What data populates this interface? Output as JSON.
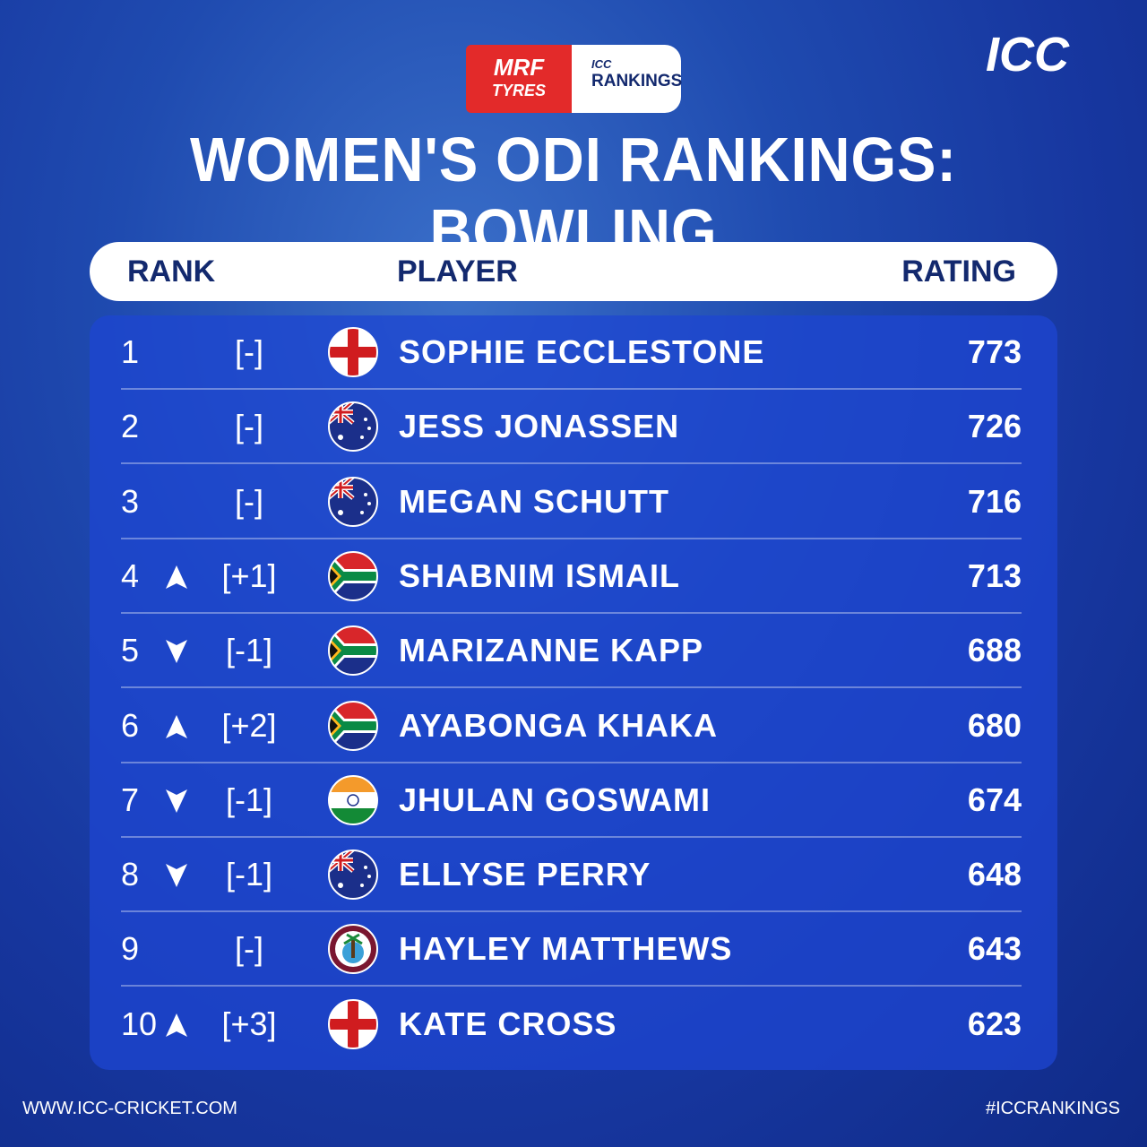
{
  "header": {
    "sponsor_top": "MRF",
    "sponsor_bottom": "TYRES",
    "badge_small": "ICC",
    "badge_main": "RANKINGS",
    "logo": "ICC",
    "title": "WOMEN'S ODI RANKINGS: BOWLING"
  },
  "table": {
    "columns": [
      "RANK",
      "PLAYER",
      "RATING"
    ],
    "rows": [
      [
        "1",
        "[-]",
        "SOPHIE ECCLESTONE",
        "773"
      ],
      [
        "2",
        "[-]",
        "JESS JONASSEN",
        "726"
      ],
      [
        "3",
        "[-]",
        "MEGAN SCHUTT",
        "716"
      ],
      [
        "4",
        "[+1]",
        "SHABNIM ISMAIL",
        "713"
      ],
      [
        "5",
        "[-1]",
        "MARIZANNE KAPP",
        "688"
      ],
      [
        "6",
        "[+2]",
        "AYABONGA KHAKA",
        "680"
      ],
      [
        "7",
        "[-1]",
        "JHULAN GOSWAMI",
        "674"
      ],
      [
        "8",
        "[-1]",
        "ELLYSE PERRY",
        "648"
      ],
      [
        "9",
        "[-]",
        "HAYLEY MATTHEWS",
        "643"
      ],
      [
        "10",
        "[+3]",
        "KATE CROSS",
        "623"
      ]
    ]
  },
  "footer": {
    "website": "WWW.ICC-CRICKET.COM",
    "hashtag": "#ICCRANKINGS"
  }
}
